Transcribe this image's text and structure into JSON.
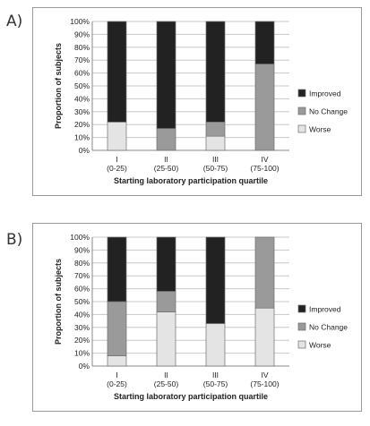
{
  "panels": [
    {
      "label": "A)"
    },
    {
      "label": "B)"
    }
  ],
  "colors": {
    "improved": "#222222",
    "no_change": "#9a9a9a",
    "worse": "#e4e4e4",
    "grid": "#c8c8c8",
    "bar_outline": "#6e6e6e"
  },
  "chart_data": [
    {
      "type": "bar",
      "stacked": true,
      "categories": [
        {
          "roman": "I",
          "range": "(0-25)"
        },
        {
          "roman": "II",
          "range": "(25-50)"
        },
        {
          "roman": "III",
          "range": "(50-75)"
        },
        {
          "roman": "IV",
          "range": "(75-100)"
        }
      ],
      "series": [
        {
          "name": "Worse",
          "values": [
            22,
            0,
            11,
            0
          ]
        },
        {
          "name": "No Change",
          "values": [
            0,
            17,
            11,
            67
          ]
        },
        {
          "name": "Improved",
          "values": [
            78,
            83,
            78,
            33
          ]
        }
      ],
      "xlabel": "Starting laboratory participation quartile",
      "ylabel": "Proportion of subjects",
      "ylim": [
        0,
        100
      ],
      "yticks": [
        "0%",
        "10%",
        "20%",
        "30%",
        "40%",
        "50%",
        "60%",
        "70%",
        "80%",
        "90%",
        "100%"
      ],
      "legend": [
        "Improved",
        "No Change",
        "Worse"
      ],
      "legend_position": "right",
      "grid": true
    },
    {
      "type": "bar",
      "stacked": true,
      "categories": [
        {
          "roman": "I",
          "range": "(0-25)"
        },
        {
          "roman": "II",
          "range": "(25-50)"
        },
        {
          "roman": "III",
          "range": "(50-75)"
        },
        {
          "roman": "IV",
          "range": "(75-100)"
        }
      ],
      "series": [
        {
          "name": "Worse",
          "values": [
            8,
            42,
            33,
            45
          ]
        },
        {
          "name": "No Change",
          "values": [
            42,
            16,
            0,
            55
          ]
        },
        {
          "name": "Improved",
          "values": [
            50,
            42,
            67,
            0
          ]
        }
      ],
      "xlabel": "Starting laboratory participation quartile",
      "ylabel": "Proportion of subjects",
      "ylim": [
        0,
        100
      ],
      "yticks": [
        "0%",
        "10%",
        "20%",
        "30%",
        "40%",
        "50%",
        "60%",
        "70%",
        "80%",
        "90%",
        "100%"
      ],
      "legend": [
        "Improved",
        "No Change",
        "Worse"
      ],
      "legend_position": "right",
      "grid": true
    }
  ]
}
